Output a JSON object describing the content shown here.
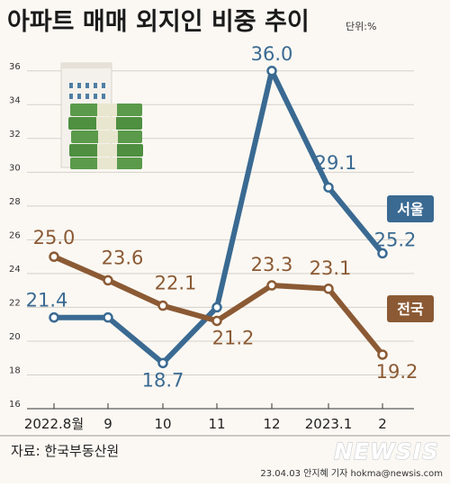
{
  "title": "아파트 매매 외지인 비중 추이",
  "unit": "단위:%",
  "source": "자료: 한국부동산원",
  "credit": "23.04.03 안지혜 기자 hokma@newsis.com",
  "brand": "NEWSIS",
  "colors": {
    "seoul": "#3a6a92",
    "national": "#8b5a34",
    "grid": "#d4d0ca",
    "background": "#fbf8f3"
  },
  "chart_data": {
    "type": "line",
    "categories": [
      "2022.8월",
      "9",
      "10",
      "11",
      "12",
      "2023.1",
      "2"
    ],
    "series": [
      {
        "name": "서울",
        "values": [
          21.4,
          21.4,
          18.7,
          22.0,
          36.0,
          29.1,
          25.2
        ],
        "labels": [
          "21.4",
          null,
          "18.7",
          null,
          "36.0",
          "29.1",
          "25.2"
        ]
      },
      {
        "name": "전국",
        "values": [
          25.0,
          23.6,
          22.1,
          21.2,
          23.3,
          23.1,
          19.2
        ],
        "labels": [
          "25.0",
          "23.6",
          "22.1",
          "21.2",
          "23.3",
          "23.1",
          "19.2"
        ]
      }
    ],
    "yticks": [
      "16",
      "18",
      "20",
      "22",
      "24",
      "26",
      "28",
      "30",
      "32",
      "34",
      "36"
    ],
    "ylim": [
      16,
      37
    ],
    "legend_position": "right",
    "grid": true
  }
}
